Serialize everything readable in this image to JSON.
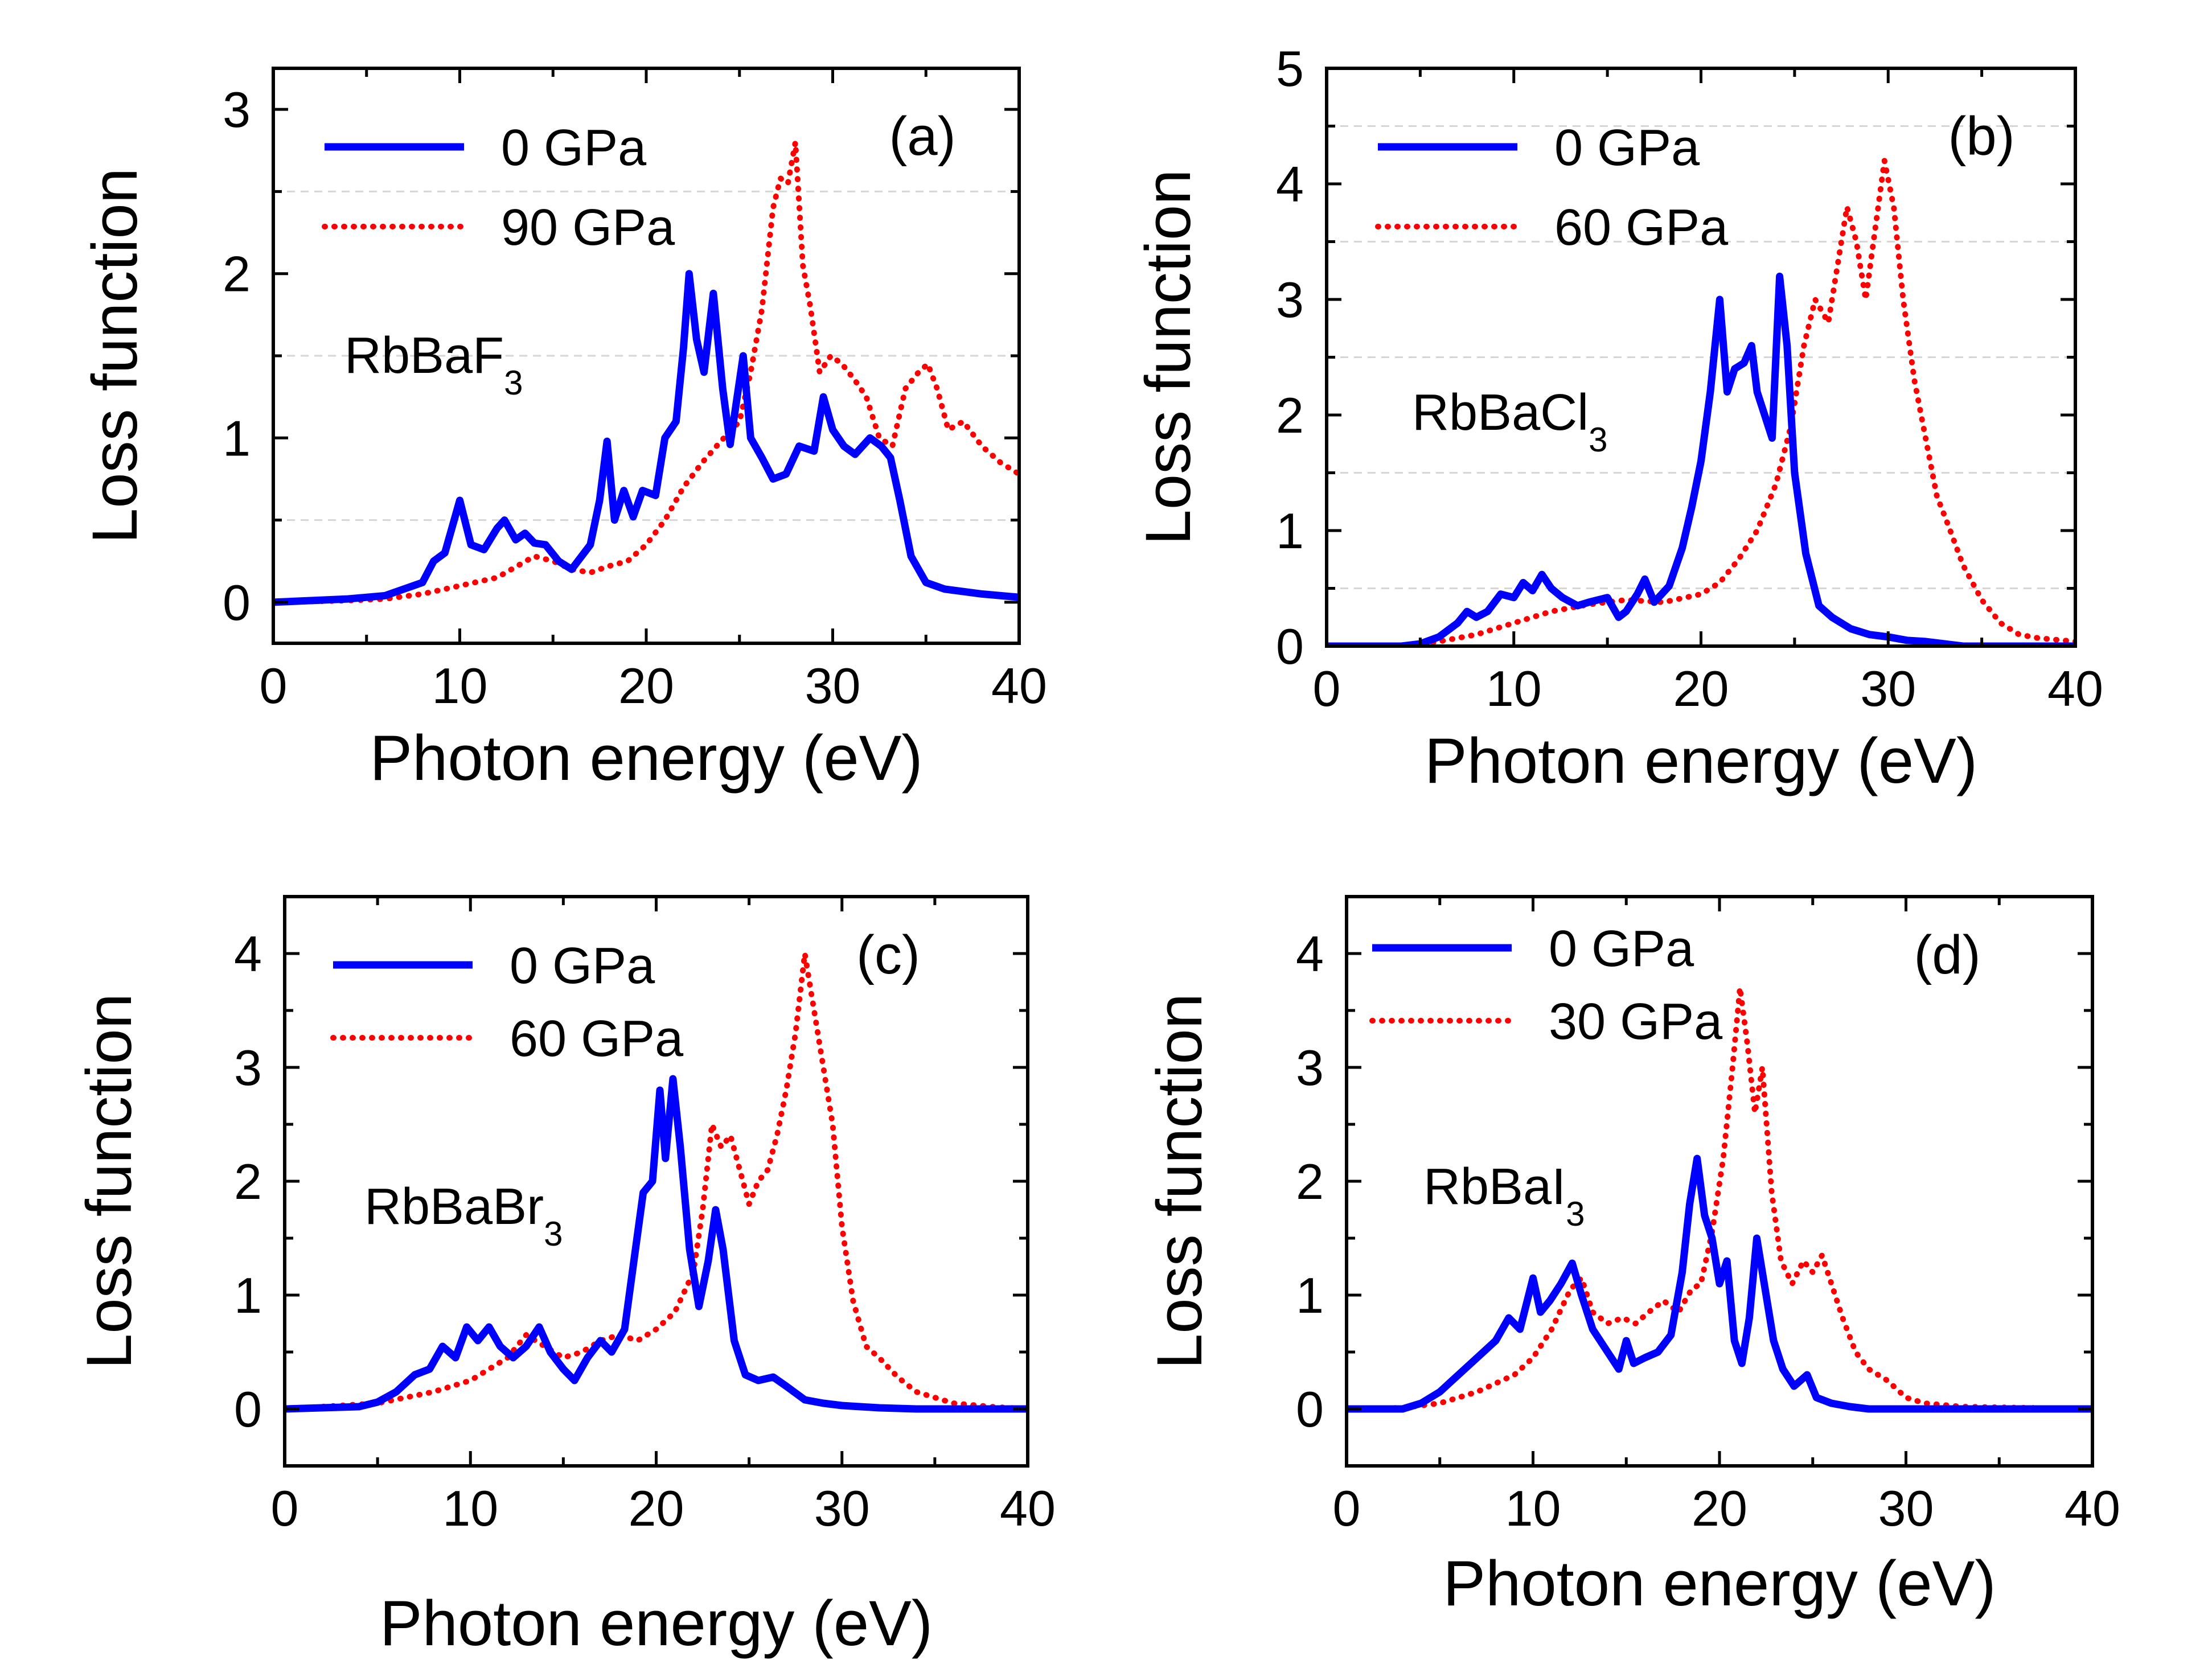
{
  "figure_title": "",
  "chart_data": [
    {
      "id": "a",
      "type": "line",
      "panel_label": "(a)",
      "compound_base": "RbBaF",
      "compound_sub": "3",
      "xlabel": "Photon energy (eV)",
      "ylabel": "Loss function",
      "xlim": [
        0,
        40
      ],
      "ylim": [
        -0.25,
        3.25
      ],
      "xticks": [
        0,
        10,
        20,
        30,
        40
      ],
      "yticks": [
        0,
        1,
        2,
        3
      ],
      "grid_y": [
        0.5,
        1.5,
        2.5
      ],
      "legend_position": "top-left",
      "series": [
        {
          "name": "0 GPa",
          "color": "#0000ff",
          "style": "solid",
          "x": [
            0,
            4,
            6,
            7,
            8,
            8.6,
            9.2,
            10,
            10.6,
            11.3,
            12,
            12.4,
            13,
            13.5,
            14,
            14.6,
            15.3,
            16,
            17,
            17.5,
            17.9,
            18.3,
            18.8,
            19.3,
            19.8,
            20.5,
            21,
            21.6,
            22,
            22.3,
            22.7,
            23.1,
            23.6,
            24.1,
            24.5,
            25.2,
            25.6,
            26.2,
            26.8,
            27.5,
            28.2,
            29,
            29.5,
            30,
            30.6,
            31.2,
            32,
            32.6,
            33.1,
            33.6,
            34.2,
            35,
            36,
            38,
            40
          ],
          "values": [
            0,
            0.02,
            0.04,
            0.08,
            0.12,
            0.25,
            0.3,
            0.62,
            0.35,
            0.32,
            0.45,
            0.5,
            0.38,
            0.42,
            0.36,
            0.35,
            0.25,
            0.2,
            0.35,
            0.62,
            0.98,
            0.5,
            0.68,
            0.52,
            0.68,
            0.65,
            1.0,
            1.1,
            1.55,
            2.0,
            1.6,
            1.4,
            1.88,
            1.3,
            0.96,
            1.5,
            1.0,
            0.88,
            0.75,
            0.78,
            0.95,
            0.92,
            1.25,
            1.05,
            0.95,
            0.9,
            1.0,
            0.95,
            0.88,
            0.62,
            0.28,
            0.12,
            0.08,
            0.05,
            0.03
          ]
        },
        {
          "name": "90 GPa",
          "color": "#ff0000",
          "style": "dotted",
          "x": [
            0,
            4,
            6,
            8,
            10,
            12,
            14,
            15,
            16,
            17,
            18,
            19,
            20,
            21,
            22,
            23,
            24,
            25,
            25.6,
            26.2,
            26.8,
            27.2,
            27.6,
            28,
            28.4,
            28.8,
            29.3,
            29.9,
            30.5,
            31.2,
            31.8,
            32.5,
            33.2,
            33.9,
            34.6,
            35.1,
            35.6,
            36.2,
            37,
            38,
            39,
            40
          ],
          "values": [
            0,
            0.01,
            0.02,
            0.05,
            0.1,
            0.15,
            0.28,
            0.25,
            0.2,
            0.18,
            0.22,
            0.25,
            0.35,
            0.5,
            0.7,
            0.85,
            0.98,
            1.1,
            1.4,
            1.78,
            2.4,
            2.58,
            2.55,
            2.8,
            2.05,
            1.8,
            1.4,
            1.5,
            1.45,
            1.35,
            1.25,
            1.0,
            0.95,
            1.3,
            1.4,
            1.45,
            1.3,
            1.05,
            1.1,
            0.95,
            0.85,
            0.78
          ]
        }
      ]
    },
    {
      "id": "b",
      "type": "line",
      "panel_label": "(b)",
      "compound_base": "RbBaCl",
      "compound_sub": "3",
      "xlabel": "Photon energy (eV)",
      "ylabel": "Loss function",
      "xlim": [
        0,
        40
      ],
      "ylim": [
        0,
        5
      ],
      "xticks": [
        0,
        10,
        20,
        30,
        40
      ],
      "yticks": [
        0,
        1,
        2,
        3,
        4,
        5
      ],
      "grid_y": [
        0.5,
        1.5,
        2.5,
        3.5,
        4.5
      ],
      "legend_position": "top-left",
      "series": [
        {
          "name": "0 GPa",
          "color": "#0000ff",
          "style": "solid",
          "x": [
            0,
            4,
            5,
            6,
            7,
            7.5,
            8,
            8.6,
            9.3,
            10,
            10.5,
            11,
            11.5,
            12,
            12.6,
            13.4,
            14,
            15,
            15.6,
            16,
            16.6,
            17,
            17.5,
            18.3,
            19,
            19.5,
            20,
            20.5,
            21,
            21.4,
            21.8,
            22.3,
            22.7,
            23,
            23.4,
            23.8,
            24.2,
            24.6,
            25,
            25.6,
            26.3,
            27,
            28,
            29,
            30,
            31,
            32,
            33,
            34,
            40
          ],
          "values": [
            0,
            0,
            0.02,
            0.08,
            0.2,
            0.3,
            0.25,
            0.3,
            0.45,
            0.42,
            0.55,
            0.48,
            0.62,
            0.5,
            0.42,
            0.35,
            0.38,
            0.42,
            0.25,
            0.3,
            0.45,
            0.58,
            0.38,
            0.52,
            0.85,
            1.2,
            1.6,
            2.2,
            3.0,
            2.2,
            2.4,
            2.45,
            2.6,
            2.2,
            2.0,
            1.8,
            3.2,
            2.6,
            1.5,
            0.8,
            0.35,
            0.25,
            0.15,
            0.1,
            0.08,
            0.05,
            0.04,
            0.02,
            0,
            0
          ]
        },
        {
          "name": "60 GPa",
          "color": "#ff0000",
          "style": "dotted",
          "x": [
            0,
            5,
            8,
            10,
            12,
            14,
            16,
            18,
            20,
            21,
            22,
            23,
            24,
            24.8,
            25.5,
            26.1,
            26.8,
            27.3,
            27.8,
            28.3,
            28.8,
            29.3,
            29.8,
            30.3,
            30.8,
            31.4,
            32,
            32.6,
            33.2,
            34,
            35,
            36,
            37,
            38,
            40
          ],
          "values": [
            0,
            0.01,
            0.1,
            0.2,
            0.3,
            0.36,
            0.4,
            0.38,
            0.45,
            0.55,
            0.75,
            1.0,
            1.4,
            1.9,
            2.6,
            3.0,
            2.8,
            3.3,
            3.8,
            3.5,
            3.0,
            3.6,
            4.2,
            3.8,
            3.0,
            2.3,
            1.8,
            1.3,
            1.05,
            0.7,
            0.4,
            0.2,
            0.1,
            0.07,
            0.04
          ]
        }
      ]
    },
    {
      "id": "c",
      "type": "line",
      "panel_label": "(c)",
      "compound_base": "RbBaBr",
      "compound_sub": "3",
      "xlabel": "Photon energy (eV)",
      "ylabel": "Loss function",
      "xlim": [
        0,
        40
      ],
      "ylim": [
        -0.5,
        4.5
      ],
      "xticks": [
        0,
        10,
        20,
        30,
        40
      ],
      "yticks": [
        0,
        1,
        2,
        3,
        4
      ],
      "grid_y": [],
      "legend_position": "top-left",
      "series": [
        {
          "name": "0 GPa",
          "color": "#0000ff",
          "style": "solid",
          "x": [
            0,
            4,
            5,
            6,
            7,
            7.8,
            8.5,
            9.2,
            9.8,
            10.4,
            11,
            11.6,
            12.3,
            13,
            13.7,
            14.3,
            15,
            15.6,
            16.3,
            17,
            17.6,
            18.3,
            18.8,
            19.3,
            19.8,
            20.2,
            20.5,
            20.9,
            21.3,
            21.8,
            22.3,
            22.8,
            23.2,
            23.6,
            24.2,
            24.8,
            25.5,
            26.3,
            27,
            28,
            29,
            30,
            32,
            34,
            40
          ],
          "values": [
            0,
            0.02,
            0.06,
            0.15,
            0.3,
            0.35,
            0.55,
            0.45,
            0.72,
            0.6,
            0.72,
            0.55,
            0.45,
            0.55,
            0.72,
            0.5,
            0.35,
            0.25,
            0.45,
            0.6,
            0.5,
            0.7,
            1.3,
            1.9,
            2.0,
            2.8,
            2.2,
            2.9,
            2.3,
            1.4,
            0.9,
            1.3,
            1.75,
            1.4,
            0.6,
            0.3,
            0.25,
            0.28,
            0.2,
            0.08,
            0.05,
            0.03,
            0.01,
            0,
            0
          ]
        },
        {
          "name": "60 GPa",
          "color": "#ff0000",
          "style": "dotted",
          "x": [
            0,
            5,
            8,
            10,
            12,
            13,
            14,
            15,
            16,
            17,
            18,
            19,
            20,
            21,
            22,
            22.5,
            23,
            23.5,
            24,
            24.5,
            25,
            25.5,
            26,
            26.5,
            27,
            27.5,
            28,
            28.5,
            29,
            29.5,
            30,
            30.6,
            31.3,
            32,
            33,
            34,
            35,
            36,
            38,
            40
          ],
          "values": [
            0,
            0.05,
            0.15,
            0.25,
            0.45,
            0.65,
            0.55,
            0.45,
            0.5,
            0.6,
            0.65,
            0.6,
            0.7,
            0.85,
            1.2,
            1.75,
            2.5,
            2.3,
            2.4,
            2.1,
            1.8,
            2.0,
            2.1,
            2.4,
            2.8,
            3.3,
            4.0,
            3.5,
            3.0,
            2.5,
            1.6,
            0.95,
            0.55,
            0.45,
            0.28,
            0.15,
            0.1,
            0.05,
            0.02,
            0
          ]
        }
      ]
    },
    {
      "id": "d",
      "type": "line",
      "panel_label": "(d)",
      "compound_base": "RbBaI",
      "compound_sub": "3",
      "xlabel": "Photon energy (eV)",
      "ylabel": "Loss function",
      "xlim": [
        0,
        40
      ],
      "ylim": [
        -0.5,
        4.5
      ],
      "xticks": [
        0,
        10,
        20,
        30,
        40
      ],
      "yticks": [
        0,
        1,
        2,
        3,
        4
      ],
      "grid_y": [],
      "legend_position": "top-left",
      "series": [
        {
          "name": "0 GPa",
          "color": "#0000ff",
          "style": "solid",
          "x": [
            0,
            3,
            4,
            5,
            6,
            7,
            8,
            8.7,
            9.3,
            10,
            10.4,
            10.9,
            11.5,
            12.1,
            12.6,
            13.2,
            14,
            14.6,
            15,
            15.4,
            16,
            16.7,
            17.4,
            18,
            18.4,
            18.8,
            19.2,
            19.6,
            20,
            20.4,
            20.8,
            21.2,
            21.6,
            22,
            22.4,
            22.9,
            23.4,
            24,
            24.7,
            25.2,
            26,
            27,
            28,
            30,
            40
          ],
          "values": [
            0,
            0,
            0.05,
            0.15,
            0.3,
            0.45,
            0.6,
            0.8,
            0.7,
            1.15,
            0.85,
            0.95,
            1.1,
            1.28,
            1.0,
            0.7,
            0.5,
            0.35,
            0.6,
            0.4,
            0.45,
            0.5,
            0.65,
            1.2,
            1.8,
            2.2,
            1.7,
            1.5,
            1.1,
            1.3,
            0.6,
            0.4,
            0.8,
            1.5,
            1.1,
            0.6,
            0.35,
            0.2,
            0.3,
            0.1,
            0.05,
            0.02,
            0,
            0,
            0
          ]
        },
        {
          "name": "30 GPa",
          "color": "#ff0000",
          "style": "dotted",
          "x": [
            0,
            3,
            5,
            7,
            9,
            10,
            11,
            12,
            12.6,
            13.2,
            14,
            14.8,
            15.5,
            16.2,
            17,
            17.8,
            18.5,
            19,
            19.6,
            20.2,
            20.7,
            21.1,
            21.5,
            21.9,
            22.3,
            22.8,
            23.3,
            23.9,
            24.5,
            25,
            25.5,
            26,
            26.6,
            27.3,
            28,
            29,
            30,
            31,
            33,
            40
          ],
          "values": [
            0,
            0.01,
            0.05,
            0.15,
            0.3,
            0.45,
            0.7,
            1.05,
            1.15,
            0.85,
            0.75,
            0.8,
            0.75,
            0.85,
            0.95,
            0.85,
            1.05,
            1.1,
            1.55,
            2.2,
            3.0,
            3.7,
            3.2,
            2.6,
            3.0,
            1.9,
            1.3,
            1.1,
            1.3,
            1.2,
            1.35,
            1.1,
            0.8,
            0.5,
            0.35,
            0.25,
            0.1,
            0.05,
            0.02,
            0
          ]
        }
      ]
    }
  ]
}
